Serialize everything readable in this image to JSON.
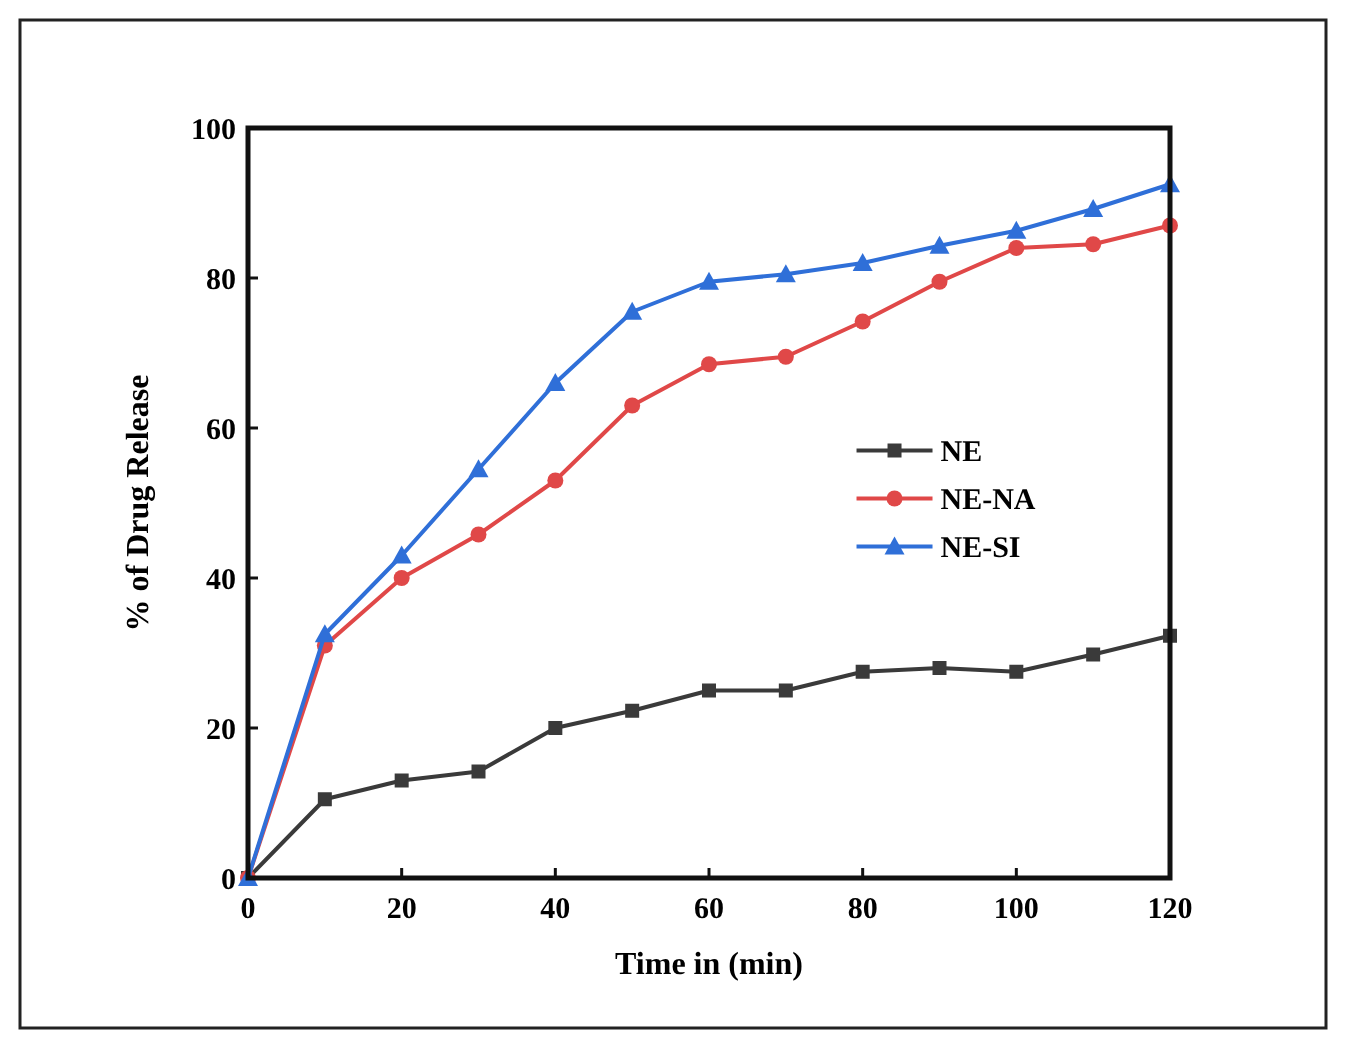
{
  "chart_data": {
    "type": "line",
    "xlabel": "Time in (min)",
    "ylabel": "% of Drug Release",
    "x": [
      0,
      10,
      20,
      30,
      40,
      50,
      60,
      70,
      80,
      90,
      100,
      110,
      120
    ],
    "xlim": [
      0,
      120
    ],
    "xticks": [
      0,
      20,
      40,
      60,
      80,
      100,
      120
    ],
    "ylim": [
      0,
      100
    ],
    "yticks": [
      0,
      20,
      40,
      60,
      80,
      100
    ],
    "grid": false,
    "legend": "right",
    "line_style": "solid",
    "series": [
      {
        "name": "NE",
        "color": "#3a3a3a",
        "marker": "square",
        "values": [
          0,
          10.5,
          13,
          14.2,
          20,
          22.3,
          25,
          25,
          27.5,
          28,
          27.5,
          29.8,
          32.3
        ]
      },
      {
        "name": "NE-NA",
        "color": "#e04848",
        "marker": "circle",
        "values": [
          0,
          31,
          40,
          45.8,
          53,
          63,
          68.5,
          69.5,
          74.2,
          79.5,
          84,
          84.5,
          87
        ]
      },
      {
        "name": "NE-SI",
        "color": "#2f6fd8",
        "marker": "triangle",
        "values": [
          0,
          32.5,
          43,
          54.5,
          66,
          75.5,
          79.5,
          80.5,
          82,
          84.3,
          86.3,
          89.2,
          92.5
        ]
      }
    ]
  }
}
